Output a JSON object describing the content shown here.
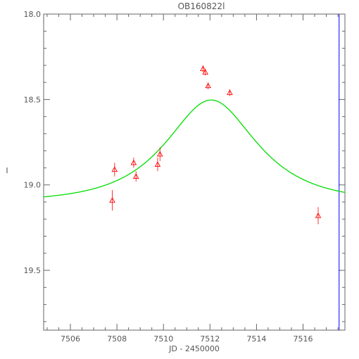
{
  "chart_data": {
    "type": "scatter",
    "title": "OB160822l",
    "xlabel": "JD - 2450000",
    "ylabel": "I",
    "xlim": [
      7504.85,
      7517.8
    ],
    "ylim": [
      18.0,
      19.85
    ],
    "y_inverted": true,
    "x_ticks": [
      7506,
      7508,
      7510,
      7512,
      7514,
      7516
    ],
    "x_tick_labels": [
      "7506",
      "7508",
      "7510",
      "7512",
      "7514",
      "7516"
    ],
    "y_ticks": [
      18.0,
      18.5,
      19.0,
      19.5
    ],
    "y_tick_labels": [
      "18.0",
      "18.5",
      "19.0",
      "19.5"
    ],
    "grid": false,
    "series": [
      {
        "kind": "points_with_errorbars",
        "marker": "triangle",
        "color": "#ff0000",
        "x": [
          7507.8,
          7507.9,
          7508.72,
          7508.82,
          7509.75,
          7509.85,
          7511.7,
          7511.8,
          7511.92,
          7512.85,
          7516.65
        ],
        "y": [
          19.09,
          18.91,
          18.87,
          18.95,
          18.88,
          18.82,
          18.32,
          18.34,
          18.42,
          18.46,
          19.18
        ],
        "yerr": [
          0.06,
          0.04,
          0.03,
          0.03,
          0.04,
          0.04,
          0.02,
          0.02,
          0.02,
          0.02,
          0.05
        ]
      },
      {
        "kind": "model_curve",
        "color": "#00dd00",
        "model": "point_lens_magnification",
        "t0": 7512.05,
        "u0": 0.67,
        "tE": 2.9,
        "baseline_mag": 19.1
      }
    ],
    "vertical_markers": [
      {
        "x": 7517.55,
        "color": "#0000ff"
      }
    ]
  }
}
